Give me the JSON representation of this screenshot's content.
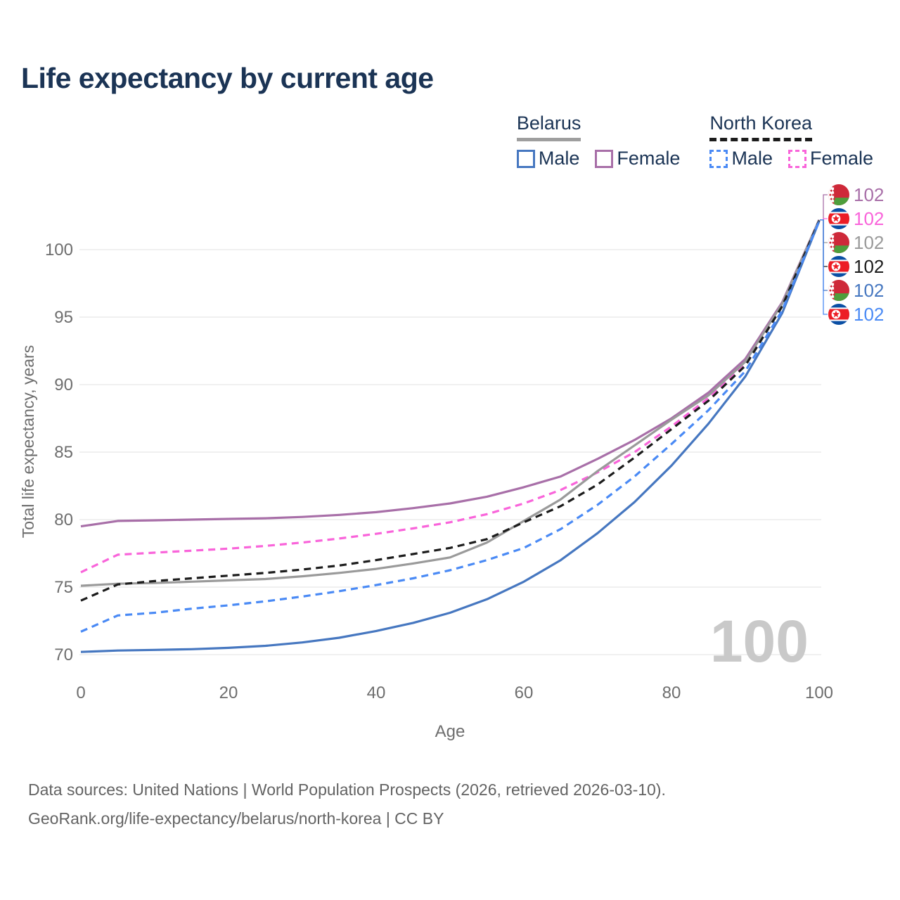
{
  "title": "Life expectancy by current age",
  "legend": {
    "groups": [
      {
        "name": "Belarus",
        "line_style": "solid",
        "line_color": "#9e9e9e",
        "items": [
          {
            "label": "Male",
            "color": "#4677c0",
            "dashed": false
          },
          {
            "label": "Female",
            "color": "#a86fa8",
            "dashed": false
          }
        ]
      },
      {
        "name": "North Korea",
        "line_style": "dashed",
        "line_color": "#1c1c1c",
        "items": [
          {
            "label": "Male",
            "color": "#4a8af5",
            "dashed": true
          },
          {
            "label": "Female",
            "color": "#f964da",
            "dashed": true
          }
        ]
      }
    ]
  },
  "chart_data": {
    "type": "line",
    "title": "Life expectancy by current age",
    "xlabel": "Age",
    "ylabel": "Total life expectancy, years",
    "x_ticks": [
      0,
      20,
      40,
      60,
      80,
      100
    ],
    "y_ticks": [
      70,
      75,
      80,
      85,
      90,
      95,
      100
    ],
    "xlim": [
      0,
      100
    ],
    "ylim": [
      68.5,
      103.5
    ],
    "grid": "horizontal",
    "legend_position": "top-right",
    "age_watermark": "100",
    "x": [
      0,
      5,
      10,
      15,
      20,
      25,
      30,
      35,
      40,
      45,
      50,
      55,
      60,
      65,
      70,
      75,
      80,
      85,
      90,
      95,
      100
    ],
    "series": [
      {
        "name": "Belarus Female",
        "country": "Belarus",
        "sex": "Female",
        "color": "#a86fa8",
        "dashed": false,
        "flag": "belarus",
        "end_label": "102",
        "values": [
          79.5,
          79.9,
          79.95,
          80.0,
          80.05,
          80.1,
          80.2,
          80.35,
          80.55,
          80.85,
          81.2,
          81.7,
          82.4,
          83.2,
          84.5,
          85.9,
          87.5,
          89.4,
          91.9,
          96.1,
          102.2
        ]
      },
      {
        "name": "North Korea Female",
        "country": "North Korea",
        "sex": "Female",
        "color": "#f964da",
        "dashed": true,
        "flag": "north-korea",
        "end_label": "102",
        "values": [
          76.1,
          77.4,
          77.55,
          77.7,
          77.85,
          78.05,
          78.3,
          78.6,
          78.95,
          79.35,
          79.8,
          80.4,
          81.2,
          82.2,
          83.5,
          85.0,
          86.9,
          89.0,
          91.6,
          96.0,
          102.2
        ]
      },
      {
        "name": "Belarus",
        "country": "Belarus",
        "sex": "Both",
        "color": "#9a9a9a",
        "dashed": false,
        "flag": "belarus",
        "end_label": "102",
        "values": [
          75.1,
          75.25,
          75.3,
          75.4,
          75.5,
          75.6,
          75.8,
          76.05,
          76.35,
          76.75,
          77.2,
          78.3,
          79.9,
          81.5,
          83.6,
          85.5,
          87.4,
          89.2,
          91.7,
          96.0,
          102.2
        ]
      },
      {
        "name": "North Korea",
        "country": "North Korea",
        "sex": "Both",
        "color": "#1c1c1c",
        "dashed": true,
        "flag": "north-korea",
        "end_label": "102",
        "values": [
          74.0,
          75.2,
          75.45,
          75.65,
          75.85,
          76.05,
          76.3,
          76.6,
          77.0,
          77.45,
          77.9,
          78.55,
          79.8,
          81.0,
          82.6,
          84.6,
          86.7,
          88.8,
          91.4,
          95.8,
          102.15
        ]
      },
      {
        "name": "Belarus Male",
        "country": "Belarus",
        "sex": "Male",
        "color": "#4677c0",
        "dashed": false,
        "flag": "belarus",
        "end_label": "102",
        "values": [
          70.2,
          70.3,
          70.35,
          70.4,
          70.5,
          70.65,
          70.9,
          71.25,
          71.75,
          72.35,
          73.1,
          74.1,
          75.4,
          77.0,
          79.0,
          81.3,
          84.0,
          87.1,
          90.6,
          95.3,
          102.1
        ]
      },
      {
        "name": "North Korea Male",
        "country": "North Korea",
        "sex": "Male",
        "color": "#4a8af5",
        "dashed": true,
        "flag": "north-korea",
        "end_label": "102",
        "values": [
          71.7,
          72.9,
          73.1,
          73.4,
          73.65,
          73.95,
          74.3,
          74.7,
          75.15,
          75.65,
          76.25,
          77.0,
          77.9,
          79.3,
          81.1,
          83.2,
          85.6,
          88.1,
          91.0,
          95.5,
          102.1
        ]
      }
    ]
  },
  "footer": {
    "line1": "Data sources: United Nations | World Population Prospects (2026, retrieved 2026-03-10).",
    "line2": "GeoRank.org/life-expectancy/belarus/north-korea | CC BY"
  }
}
